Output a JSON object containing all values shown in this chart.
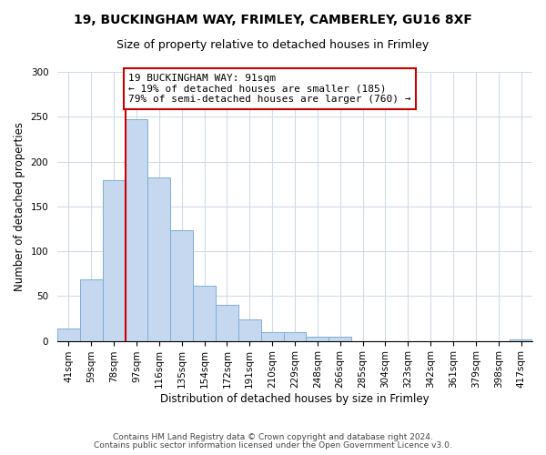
{
  "title": "19, BUCKINGHAM WAY, FRIMLEY, CAMBERLEY, GU16 8XF",
  "subtitle": "Size of property relative to detached houses in Frimley",
  "xlabel": "Distribution of detached houses by size in Frimley",
  "ylabel": "Number of detached properties",
  "bin_labels": [
    "41sqm",
    "59sqm",
    "78sqm",
    "97sqm",
    "116sqm",
    "135sqm",
    "154sqm",
    "172sqm",
    "191sqm",
    "210sqm",
    "229sqm",
    "248sqm",
    "266sqm",
    "285sqm",
    "304sqm",
    "323sqm",
    "342sqm",
    "361sqm",
    "379sqm",
    "398sqm",
    "417sqm"
  ],
  "bar_values": [
    14,
    69,
    179,
    247,
    182,
    123,
    62,
    40,
    24,
    10,
    10,
    5,
    5,
    0,
    0,
    0,
    0,
    0,
    0,
    0,
    2
  ],
  "bar_color": "#c5d8f0",
  "bar_edge_color": "#7baed4",
  "vline_x_idx": 3,
  "vline_color": "#cc0000",
  "annotation_line1": "19 BUCKINGHAM WAY: 91sqm",
  "annotation_line2": "← 19% of detached houses are smaller (185)",
  "annotation_line3": "79% of semi-detached houses are larger (760) →",
  "annotation_box_color": "#ffffff",
  "annotation_box_edge": "#cc0000",
  "ylim": [
    0,
    300
  ],
  "yticks": [
    0,
    50,
    100,
    150,
    200,
    250,
    300
  ],
  "footer1": "Contains HM Land Registry data © Crown copyright and database right 2024.",
  "footer2": "Contains public sector information licensed under the Open Government Licence v3.0.",
  "bg_color": "#ffffff",
  "grid_color": "#d0dce8",
  "title_fontsize": 10,
  "subtitle_fontsize": 9,
  "axis_label_fontsize": 8.5,
  "tick_fontsize": 7.5,
  "annotation_fontsize": 8,
  "footer_fontsize": 6.5
}
